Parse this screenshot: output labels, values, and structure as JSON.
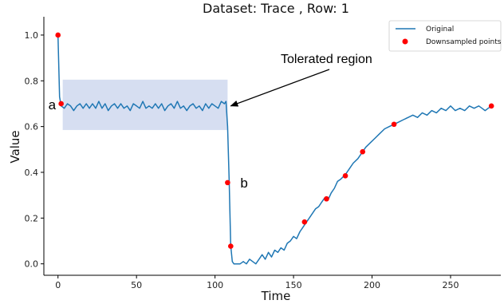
{
  "chart_data": {
    "type": "line",
    "title": "Dataset: Trace , Row: 1",
    "xlabel": "Time",
    "ylabel": "Value",
    "xlim": [
      -9,
      282
    ],
    "ylim": [
      -0.05,
      1.08
    ],
    "xticks": [
      0,
      50,
      100,
      150,
      200,
      250
    ],
    "xtick_labels": [
      "0",
      "50",
      "100",
      "150",
      "200",
      "250"
    ],
    "yticks": [
      0.0,
      0.2,
      0.4,
      0.6,
      0.8,
      1.0
    ],
    "ytick_labels": [
      "0.0",
      "0.2",
      "0.4",
      "0.6",
      "0.8",
      "1.0"
    ],
    "grid": false,
    "legend_position": "top-right",
    "colors": {
      "line": "#1f77b4",
      "points": "#ff0000",
      "region": "#cfd8ee",
      "arrow": "#000000"
    },
    "series": [
      {
        "name": "Original",
        "kind": "line",
        "x": [
          0,
          1,
          2,
          4,
          6,
          8,
          10,
          12,
          14,
          16,
          18,
          20,
          22,
          24,
          26,
          28,
          30,
          32,
          34,
          36,
          38,
          40,
          42,
          44,
          46,
          48,
          50,
          52,
          54,
          56,
          58,
          60,
          62,
          64,
          66,
          68,
          70,
          72,
          74,
          76,
          78,
          80,
          82,
          84,
          86,
          88,
          90,
          92,
          94,
          96,
          98,
          100,
          102,
          104,
          106,
          107,
          108,
          109,
          110,
          111,
          112,
          114,
          116,
          118,
          120,
          122,
          124,
          126,
          128,
          130,
          132,
          134,
          136,
          138,
          140,
          142,
          144,
          146,
          148,
          150,
          152,
          154,
          156,
          158,
          160,
          162,
          164,
          166,
          168,
          170,
          172,
          174,
          176,
          178,
          180,
          183,
          186,
          188,
          191,
          194,
          196,
          199,
          202,
          205,
          208,
          211,
          214,
          217,
          220,
          223,
          226,
          229,
          232,
          235,
          238,
          241,
          244,
          247,
          250,
          253,
          256,
          259,
          262,
          265,
          268,
          270,
          272,
          274,
          276
        ],
        "y": [
          1.0,
          0.73,
          0.69,
          0.68,
          0.7,
          0.69,
          0.67,
          0.69,
          0.7,
          0.68,
          0.7,
          0.68,
          0.7,
          0.68,
          0.71,
          0.68,
          0.7,
          0.67,
          0.69,
          0.7,
          0.68,
          0.7,
          0.68,
          0.69,
          0.67,
          0.7,
          0.69,
          0.68,
          0.71,
          0.68,
          0.69,
          0.68,
          0.7,
          0.68,
          0.7,
          0.67,
          0.69,
          0.7,
          0.68,
          0.71,
          0.68,
          0.69,
          0.67,
          0.69,
          0.7,
          0.68,
          0.69,
          0.67,
          0.7,
          0.68,
          0.7,
          0.69,
          0.68,
          0.71,
          0.7,
          0.71,
          0.6,
          0.36,
          0.08,
          0.01,
          0.0,
          0.0,
          0.0,
          0.01,
          0.0,
          0.02,
          0.01,
          0.0,
          0.02,
          0.04,
          0.02,
          0.05,
          0.03,
          0.06,
          0.05,
          0.07,
          0.06,
          0.09,
          0.1,
          0.12,
          0.11,
          0.14,
          0.16,
          0.18,
          0.2,
          0.22,
          0.24,
          0.25,
          0.27,
          0.29,
          0.28,
          0.31,
          0.33,
          0.36,
          0.37,
          0.39,
          0.42,
          0.44,
          0.46,
          0.49,
          0.51,
          0.53,
          0.55,
          0.57,
          0.59,
          0.6,
          0.61,
          0.62,
          0.63,
          0.64,
          0.65,
          0.64,
          0.66,
          0.65,
          0.67,
          0.66,
          0.68,
          0.67,
          0.69,
          0.67,
          0.68,
          0.67,
          0.69,
          0.68,
          0.69,
          0.68,
          0.67,
          0.68,
          0.69
        ]
      },
      {
        "name": "Downsampled points",
        "kind": "scatter",
        "x": [
          0,
          2,
          108,
          110,
          157,
          171,
          183,
          194,
          214,
          276
        ],
        "y": [
          1.0,
          0.7,
          0.355,
          0.077,
          0.183,
          0.284,
          0.385,
          0.49,
          0.61,
          0.69
        ]
      }
    ],
    "shaded_region": {
      "x": [
        3,
        108
      ],
      "y": [
        0.585,
        0.805
      ]
    },
    "annotations": [
      {
        "text": "Tolerated region",
        "arrow_target": [
          109,
          0.69
        ]
      },
      {
        "text": "a",
        "point": [
          2,
          0.7
        ]
      },
      {
        "text": "b",
        "point": [
          108,
          0.355
        ]
      }
    ]
  }
}
